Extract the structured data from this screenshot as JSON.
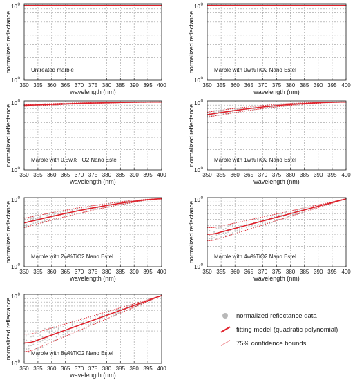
{
  "chart_data": [
    {
      "type": "line",
      "annotation": "Untreated marble",
      "xlabel": "wavelength (nm)",
      "ylabel": "normalized reflectance",
      "xlim": [
        350,
        400
      ],
      "x_ticks": [
        "350",
        "355",
        "360",
        "365",
        "370",
        "375",
        "380",
        "385",
        "390",
        "395",
        "400"
      ],
      "y_scale": "log",
      "y_tick_labels": [
        "10^0",
        "10^0"
      ],
      "grid": true,
      "curve": {
        "x": [
          350,
          400
        ],
        "y": [
          1.0,
          1.0
        ]
      }
    },
    {
      "type": "line",
      "annotation": "Marble with 0w%TiO2 Nano Estel",
      "xlabel": "wavelength (nm)",
      "ylabel": "normalized reflectance",
      "xlim": [
        350,
        400
      ],
      "x_ticks": [
        "350",
        "355",
        "360",
        "365",
        "370",
        "375",
        "380",
        "385",
        "390",
        "395",
        "400"
      ],
      "y_scale": "log",
      "y_tick_labels": [
        "10^0",
        "10^0"
      ],
      "grid": true,
      "curve": {
        "x": [
          350,
          400
        ],
        "y": [
          1.0,
          1.0
        ]
      }
    },
    {
      "type": "line",
      "annotation": "Marble with 0.5w%TiO2 Nano Estel",
      "xlabel": "wavelength (nm)",
      "ylabel": "normalized reflectance",
      "xlim": [
        350,
        400
      ],
      "x_ticks": [
        "350",
        "355",
        "360",
        "365",
        "370",
        "375",
        "380",
        "385",
        "390",
        "395",
        "400"
      ],
      "y_scale": "log",
      "y_tick_labels": [
        "10^0",
        "10^0"
      ],
      "grid": true,
      "curve": {
        "x": [
          350,
          400
        ],
        "y": [
          0.89,
          1.0
        ]
      }
    },
    {
      "type": "line",
      "annotation": "Marble with 1w%TiO2 Nano Estel",
      "xlabel": "wavelength (nm)",
      "ylabel": "normalized reflectance",
      "xlim": [
        350,
        400
      ],
      "x_ticks": [
        "350",
        "355",
        "360",
        "365",
        "370",
        "375",
        "380",
        "385",
        "390",
        "395",
        "400"
      ],
      "y_scale": "log",
      "y_tick_labels": [
        "10^0",
        "10^0"
      ],
      "grid": true,
      "curve": {
        "x": [
          350,
          400
        ],
        "y": [
          0.65,
          1.0
        ]
      }
    },
    {
      "type": "line",
      "annotation": "Marble with 2w%TiO2 Nano Estel",
      "xlabel": "wavelength (nm)",
      "ylabel": "normalized reflectance",
      "xlim": [
        350,
        400
      ],
      "x_ticks": [
        "350",
        "355",
        "360",
        "365",
        "370",
        "375",
        "380",
        "385",
        "390",
        "395",
        "400"
      ],
      "y_scale": "log",
      "y_tick_labels": [
        "10^0",
        "10^0"
      ],
      "grid": true,
      "curve": {
        "x": [
          350,
          400
        ],
        "y": [
          0.44,
          1.0
        ]
      }
    },
    {
      "type": "line",
      "annotation": "Marble with 4w%TiO2 Nano Estel",
      "xlabel": "wavelength (nm)",
      "ylabel": "normalized reflectance",
      "xlim": [
        350,
        400
      ],
      "x_ticks": [
        "350",
        "355",
        "360",
        "365",
        "370",
        "375",
        "380",
        "385",
        "390",
        "395",
        "400"
      ],
      "y_scale": "log",
      "y_tick_labels": [
        "10^0",
        "10^0"
      ],
      "grid": true,
      "curve": {
        "x": [
          350,
          400
        ],
        "y": [
          0.3,
          1.0
        ]
      }
    },
    {
      "type": "line",
      "annotation": "Marble with 8w%TiO2 Nano Estel",
      "xlabel": "wavelength (nm)",
      "ylabel": "normalized reflectance",
      "xlim": [
        350,
        400
      ],
      "x_ticks": [
        "350",
        "355",
        "360",
        "365",
        "370",
        "375",
        "380",
        "385",
        "390",
        "395",
        "400"
      ],
      "y_scale": "log",
      "y_tick_labels": [
        "10^0",
        "10^0"
      ],
      "grid": true,
      "curve": {
        "x": [
          350,
          400
        ],
        "y": [
          0.2,
          1.0
        ]
      }
    }
  ],
  "legend": {
    "data_label": "normalized reflectance data",
    "fit_label": "fitting model (quadratic polynomial)",
    "bounds_label": "75% confidence bounds",
    "colors": {
      "data": "#b8b8b8",
      "fit": "#e0202a",
      "bounds": "#e0202a"
    }
  }
}
